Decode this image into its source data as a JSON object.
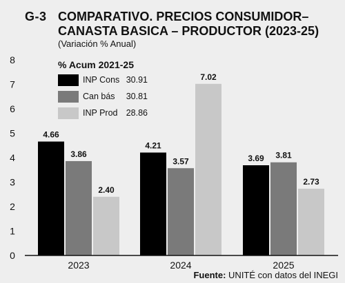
{
  "header": {
    "code": "G-3",
    "title": "COMPARATIVO. PRECIOS CONSUMIDOR– CANASTA BASICA – PRODUCTOR (2023-25)",
    "subtitle": "(Variación % Anual)"
  },
  "legend": {
    "title": "% Acum 2021-25",
    "items": [
      {
        "name": "INP Cons",
        "value": "30.91",
        "color": "#000000"
      },
      {
        "name": "Can bás",
        "value": "30.81",
        "color": "#7a7a7a"
      },
      {
        "name": "INP Prod",
        "value": "28.86",
        "color": "#c8c8c8"
      }
    ]
  },
  "chart_data": {
    "type": "bar",
    "categories": [
      "2023",
      "2024",
      "2025"
    ],
    "series": [
      {
        "name": "INP Cons",
        "values": [
          4.66,
          4.21,
          3.69
        ],
        "labels": [
          "4.66",
          "4.21",
          "3.69"
        ],
        "color": "#000000"
      },
      {
        "name": "Can bás",
        "values": [
          3.86,
          3.57,
          3.81
        ],
        "labels": [
          "3.86",
          "3.57",
          "3.81"
        ],
        "color": "#7a7a7a"
      },
      {
        "name": "INP Prod",
        "values": [
          2.4,
          7.02,
          2.73
        ],
        "labels": [
          "2.40",
          "7.02",
          "2.73"
        ],
        "color": "#c8c8c8"
      }
    ],
    "ylim": [
      0,
      8
    ],
    "yticks": [
      "0",
      "1",
      "2",
      "3",
      "4",
      "5",
      "6",
      "7",
      "8"
    ],
    "grid": false
  },
  "source": {
    "label": "Fuente:",
    "text": "UNITÉ con datos del INEGI"
  }
}
